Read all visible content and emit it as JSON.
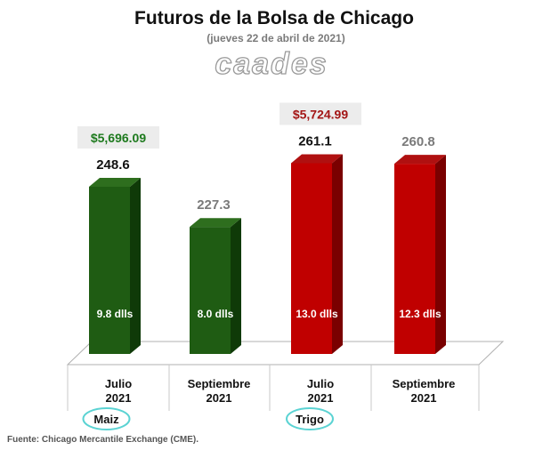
{
  "chart_data": {
    "type": "bar",
    "title": "Futuros de la Bolsa de Chicago",
    "subtitle": "(jueves 22 de abril de 2021)",
    "watermark": "caades",
    "source": "Fuente: Chicago Mercantile Exchange (CME).",
    "ylim": [
      0,
      270
    ],
    "groups": [
      {
        "name": "Maiz",
        "price": "$5,696.09",
        "price_color": "#1e7a1e",
        "front_color": "#1f5c13",
        "side_color": "#0f3a08",
        "top_color": "#2e6e1e",
        "bars": [
          {
            "label_line1": "Julio",
            "label_line2": "2021",
            "value": 248.6,
            "value_label": "248.6",
            "value_color": "#111111",
            "change": "9.8 dlls"
          },
          {
            "label_line1": "Septiembre",
            "label_line2": "2021",
            "value": 227.3,
            "value_label": "227.3",
            "value_color": "#7a7a7a",
            "change": "8.0 dlls"
          }
        ]
      },
      {
        "name": "Trigo",
        "price": "$5,724.99",
        "price_color": "#a31515",
        "front_color": "#c00000",
        "side_color": "#7a0000",
        "top_color": "#b01010",
        "bars": [
          {
            "label_line1": "Julio",
            "label_line2": "2021",
            "value": 261.1,
            "value_label": "261.1",
            "value_color": "#111111",
            "change": "13.0 dlls"
          },
          {
            "label_line1": "Septiembre",
            "label_line2": "2021",
            "value": 260.8,
            "value_label": "260.8",
            "value_color": "#7a7a7a",
            "change": "12.3 dlls"
          }
        ]
      }
    ]
  }
}
